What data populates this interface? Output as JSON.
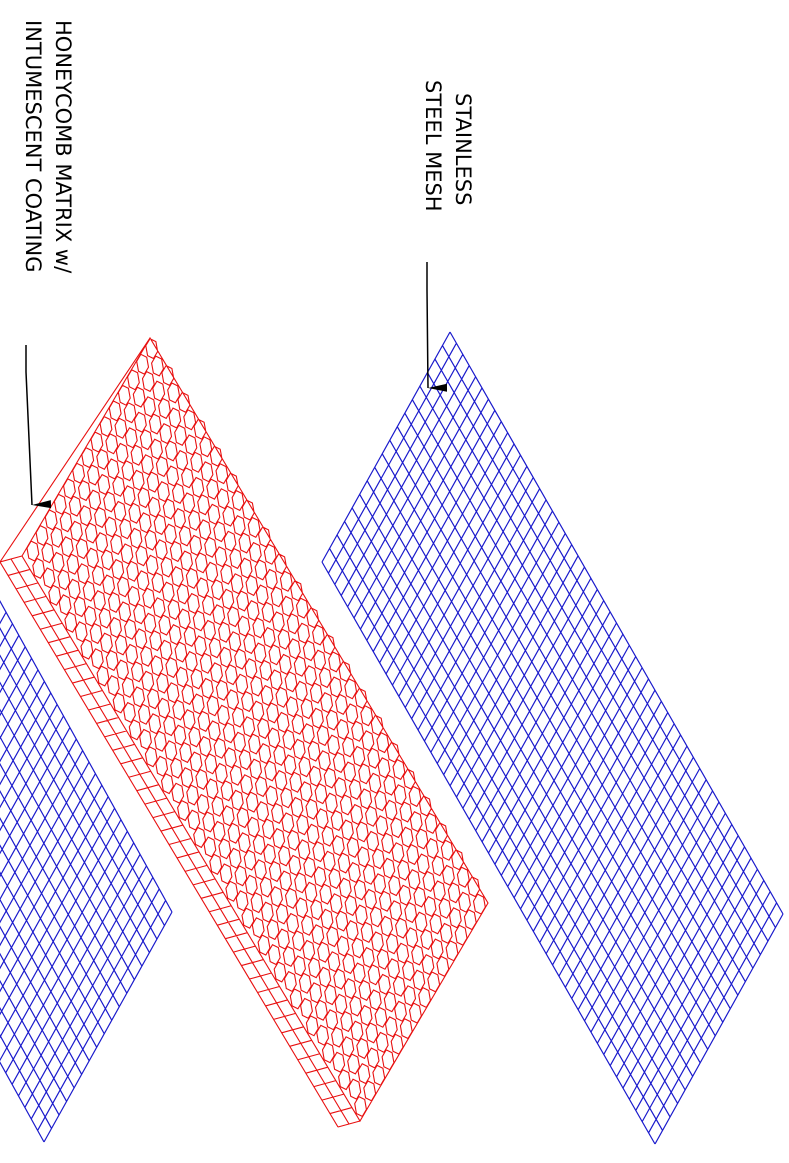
{
  "labels": [
    {
      "lines": [
        "STAINLESS",
        "STEEL MESH"
      ]
    },
    {
      "lines": [
        "HONEYCOMB MATRIX w/",
        "INTUMESCENT COATING"
      ]
    }
  ]
}
